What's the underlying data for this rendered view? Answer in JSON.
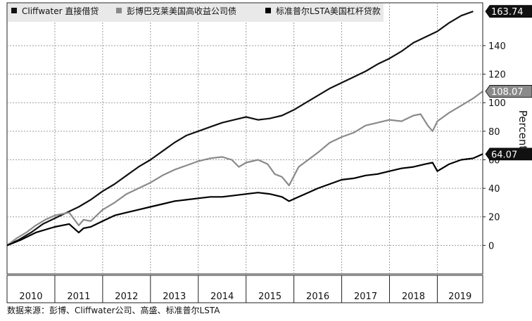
{
  "chart_data": {
    "type": "line",
    "ylabel": "Percent",
    "ylim": [
      -20,
      170
    ],
    "yticks": [
      0,
      20,
      40,
      60,
      80,
      100,
      120,
      140
    ],
    "xlim": [
      2010.0,
      2019.95
    ],
    "year_labels": [
      "2010",
      "2011",
      "2012",
      "2013",
      "2014",
      "2015",
      "2016",
      "2017",
      "2018",
      "2019"
    ],
    "grid": true,
    "legend_position": "top",
    "series": [
      {
        "name": "Cliffwater 直接借贷",
        "color": "#111111",
        "end_label": "163.74",
        "x": [
          2010.0,
          2010.25,
          2010.5,
          2010.75,
          2011.0,
          2011.25,
          2011.5,
          2011.75,
          2012.0,
          2012.25,
          2012.5,
          2012.75,
          2013.0,
          2013.25,
          2013.5,
          2013.75,
          2014.0,
          2014.25,
          2014.5,
          2014.75,
          2015.0,
          2015.25,
          2015.5,
          2015.75,
          2016.0,
          2016.25,
          2016.5,
          2016.75,
          2017.0,
          2017.25,
          2017.5,
          2017.75,
          2018.0,
          2018.25,
          2018.5,
          2018.75,
          2019.0,
          2019.25,
          2019.5,
          2019.75
        ],
        "y": [
          0,
          4,
          9,
          15,
          19,
          23,
          27,
          32,
          38,
          43,
          49,
          55,
          60,
          66,
          72,
          77,
          80,
          83,
          86,
          88,
          90,
          88,
          89,
          91,
          95,
          100,
          105,
          110,
          114,
          118,
          122,
          127,
          131,
          136,
          142,
          146,
          150,
          156,
          161,
          164
        ]
      },
      {
        "name": "彭博巴克莱美国高收益公司债",
        "color": "#8a8a8a",
        "end_label": "108.07",
        "x": [
          2010.0,
          2010.2,
          2010.4,
          2010.6,
          2010.8,
          2011.0,
          2011.3,
          2011.5,
          2011.6,
          2011.75,
          2012.0,
          2012.25,
          2012.5,
          2012.75,
          2013.0,
          2013.25,
          2013.5,
          2013.75,
          2014.0,
          2014.25,
          2014.5,
          2014.7,
          2014.85,
          2015.0,
          2015.25,
          2015.45,
          2015.6,
          2015.75,
          2015.9,
          2016.1,
          2016.3,
          2016.5,
          2016.75,
          2017.0,
          2017.25,
          2017.5,
          2017.75,
          2018.0,
          2018.25,
          2018.5,
          2018.65,
          2018.8,
          2018.9,
          2019.0,
          2019.25,
          2019.5,
          2019.75,
          2019.95
        ],
        "y": [
          0,
          5,
          9,
          14,
          18,
          21,
          23,
          14,
          18,
          17,
          25,
          30,
          36,
          40,
          44,
          49,
          53,
          56,
          59,
          61,
          62,
          60,
          55,
          58,
          60,
          57,
          50,
          48,
          42,
          55,
          60,
          65,
          72,
          76,
          79,
          84,
          86,
          88,
          87,
          91,
          92,
          84,
          80,
          87,
          93,
          98,
          103,
          108
        ]
      },
      {
        "name": "标准普尔LSTA美国杠杆贷款",
        "color": "#000000",
        "end_label": "64.07",
        "x": [
          2010.0,
          2010.3,
          2010.6,
          2011.0,
          2011.3,
          2011.5,
          2011.6,
          2011.75,
          2012.0,
          2012.25,
          2012.5,
          2012.75,
          2013.0,
          2013.25,
          2013.5,
          2013.75,
          2014.0,
          2014.25,
          2014.5,
          2014.75,
          2015.0,
          2015.25,
          2015.5,
          2015.75,
          2015.9,
          2016.1,
          2016.3,
          2016.5,
          2016.75,
          2017.0,
          2017.25,
          2017.5,
          2017.75,
          2018.0,
          2018.25,
          2018.5,
          2018.75,
          2018.9,
          2019.0,
          2019.25,
          2019.5,
          2019.75,
          2019.95
        ],
        "y": [
          0,
          4,
          9,
          13,
          15,
          9,
          12,
          13,
          17,
          21,
          23,
          25,
          27,
          29,
          31,
          32,
          33,
          34,
          34,
          35,
          36,
          37,
          36,
          34,
          31,
          34,
          37,
          40,
          43,
          46,
          47,
          49,
          50,
          52,
          54,
          55,
          57,
          58,
          52,
          57,
          60,
          61,
          64
        ]
      }
    ]
  },
  "source_text": "数据来源：彭博、Cliffwater公司、高盛、标准普尔LSTA"
}
